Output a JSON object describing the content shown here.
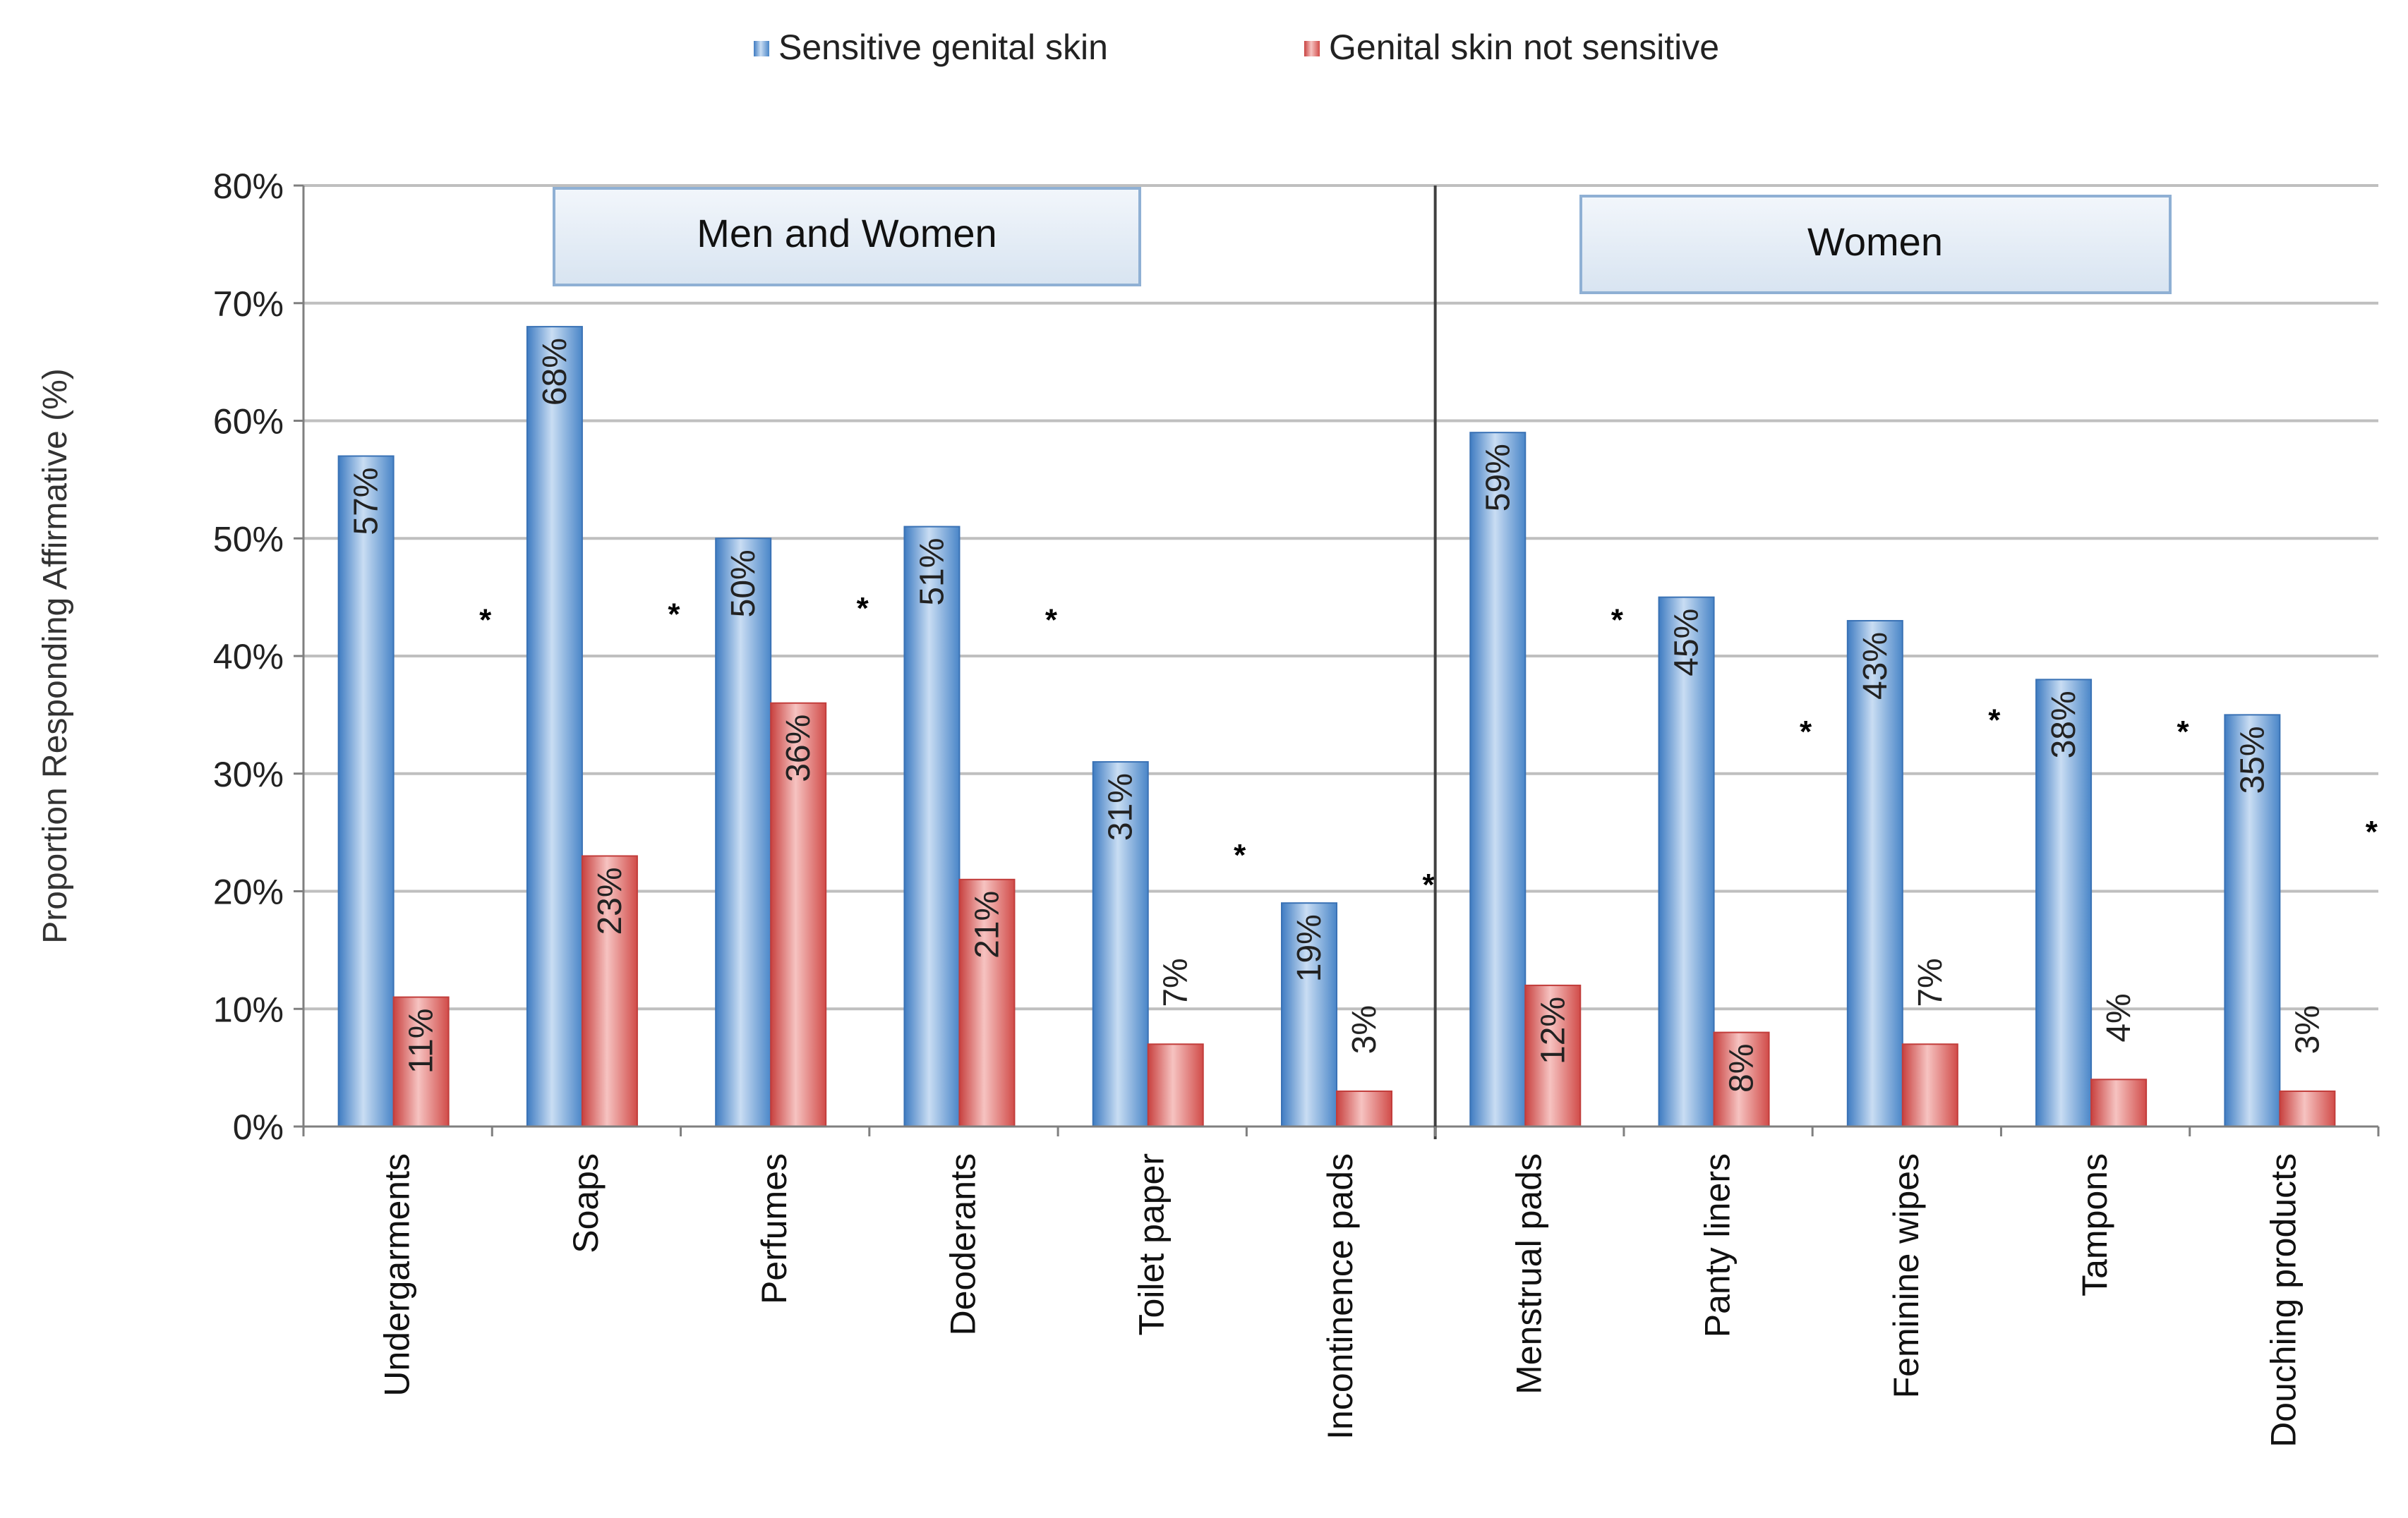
{
  "chart_data": {
    "type": "bar",
    "ylabel": "Proportion Responding Affirmative (%)",
    "ylim": [
      0,
      80
    ],
    "yticks": [
      0,
      10,
      20,
      30,
      40,
      50,
      60,
      70,
      80
    ],
    "ytick_suffix": "%",
    "grid": true,
    "legend_position": "top",
    "groups": [
      {
        "label": "Men and Women",
        "count": 6
      },
      {
        "label": "Women",
        "count": 5
      }
    ],
    "categories": [
      "Undergarments",
      "Soaps",
      "Perfumes",
      "Deoderants",
      "Toilet paper",
      "Incontinence pads",
      "Menstrual pads",
      "Panty liners",
      "Feminine wipes",
      "Tampons",
      "Douching products"
    ],
    "series": [
      {
        "name": "Sensitive genital skin",
        "color": "#5b9bd5",
        "values": [
          57,
          68,
          50,
          51,
          31,
          19,
          59,
          45,
          43,
          38,
          35
        ]
      },
      {
        "name": "Genital skin not sensitive",
        "color": "#e06666",
        "values": [
          11,
          23,
          36,
          21,
          7,
          3,
          12,
          8,
          7,
          4,
          3
        ]
      }
    ],
    "value_labels": {
      "series_0": [
        "57%",
        "68%",
        "50%",
        "51%",
        "31%",
        "19%",
        "59%",
        "45%",
        "43%",
        "38%",
        "35%"
      ],
      "series_1": [
        "11%",
        "23%",
        "36%",
        "21%",
        "7%",
        "3%",
        "12%",
        "8%",
        "7%",
        "4%",
        "3%"
      ]
    },
    "significance_marker": "*",
    "significance_level": [
      43.5,
      44,
      44.5,
      43.5,
      23.5,
      21,
      43.5,
      34,
      35,
      34,
      25.5
    ]
  }
}
